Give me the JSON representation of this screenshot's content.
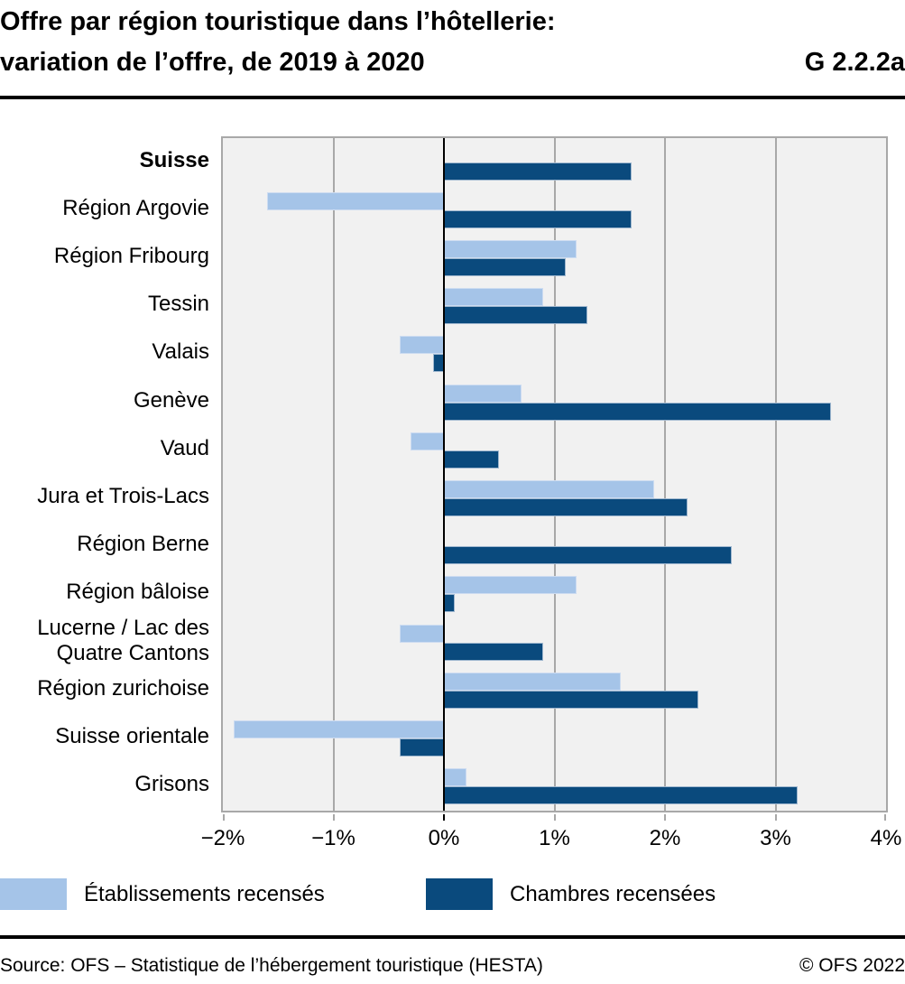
{
  "header": {
    "title_line1": "Offre par région touristique dans l’hôtellerie:",
    "title_line2": "variation de l’offre, de 2019 à 2020",
    "graph_id": "G 2.2.2a"
  },
  "chart_data": {
    "type": "bar",
    "orientation": "horizontal",
    "title": "Offre par région touristique dans l’hôtellerie: variation de l’offre, de 2019 à 2020",
    "unit": "%",
    "xlim": [
      -2,
      4
    ],
    "grid": "vertical",
    "legend_position": "bottom",
    "plot_background": "#f1f1f1",
    "gridline_color": "#a8a8a8",
    "zero_line_color": "#000000",
    "categories": [
      "Suisse",
      "Région Argovie",
      "Région Fribourg",
      "Tessin",
      "Valais",
      "Genève",
      "Vaud",
      "Jura et Trois-Lacs",
      "Région Berne",
      "Région bâloise",
      "Lucerne / Lac des Quatre Cantons",
      "Région zurichoise",
      "Suisse orientale",
      "Grisons"
    ],
    "emphasized_category_index": 0,
    "series": [
      {
        "name": "Établissements recensés",
        "color": "#a5c4e8",
        "values": [
          0.0,
          -1.6,
          1.2,
          0.9,
          -0.4,
          0.7,
          -0.3,
          1.9,
          0.0,
          1.2,
          -0.4,
          1.6,
          -1.9,
          0.2
        ]
      },
      {
        "name": "Chambres recensées",
        "color": "#0a4a7d",
        "values": [
          1.7,
          1.7,
          1.1,
          1.3,
          -0.1,
          3.5,
          0.5,
          2.2,
          2.6,
          0.1,
          0.9,
          2.3,
          -0.4,
          3.2
        ]
      }
    ],
    "x_ticks": [
      {
        "value": -2,
        "label": "−2%"
      },
      {
        "value": -1,
        "label": "−1%"
      },
      {
        "value": 0,
        "label": "0%"
      },
      {
        "value": 1,
        "label": "1%"
      },
      {
        "value": 2,
        "label": "2%"
      },
      {
        "value": 3,
        "label": "3%"
      },
      {
        "value": 4,
        "label": "4%"
      }
    ]
  },
  "footer": {
    "source": "Source: OFS – Statistique de l’hébergement touristique (HESTA)",
    "copyright": "© OFS 2022"
  }
}
